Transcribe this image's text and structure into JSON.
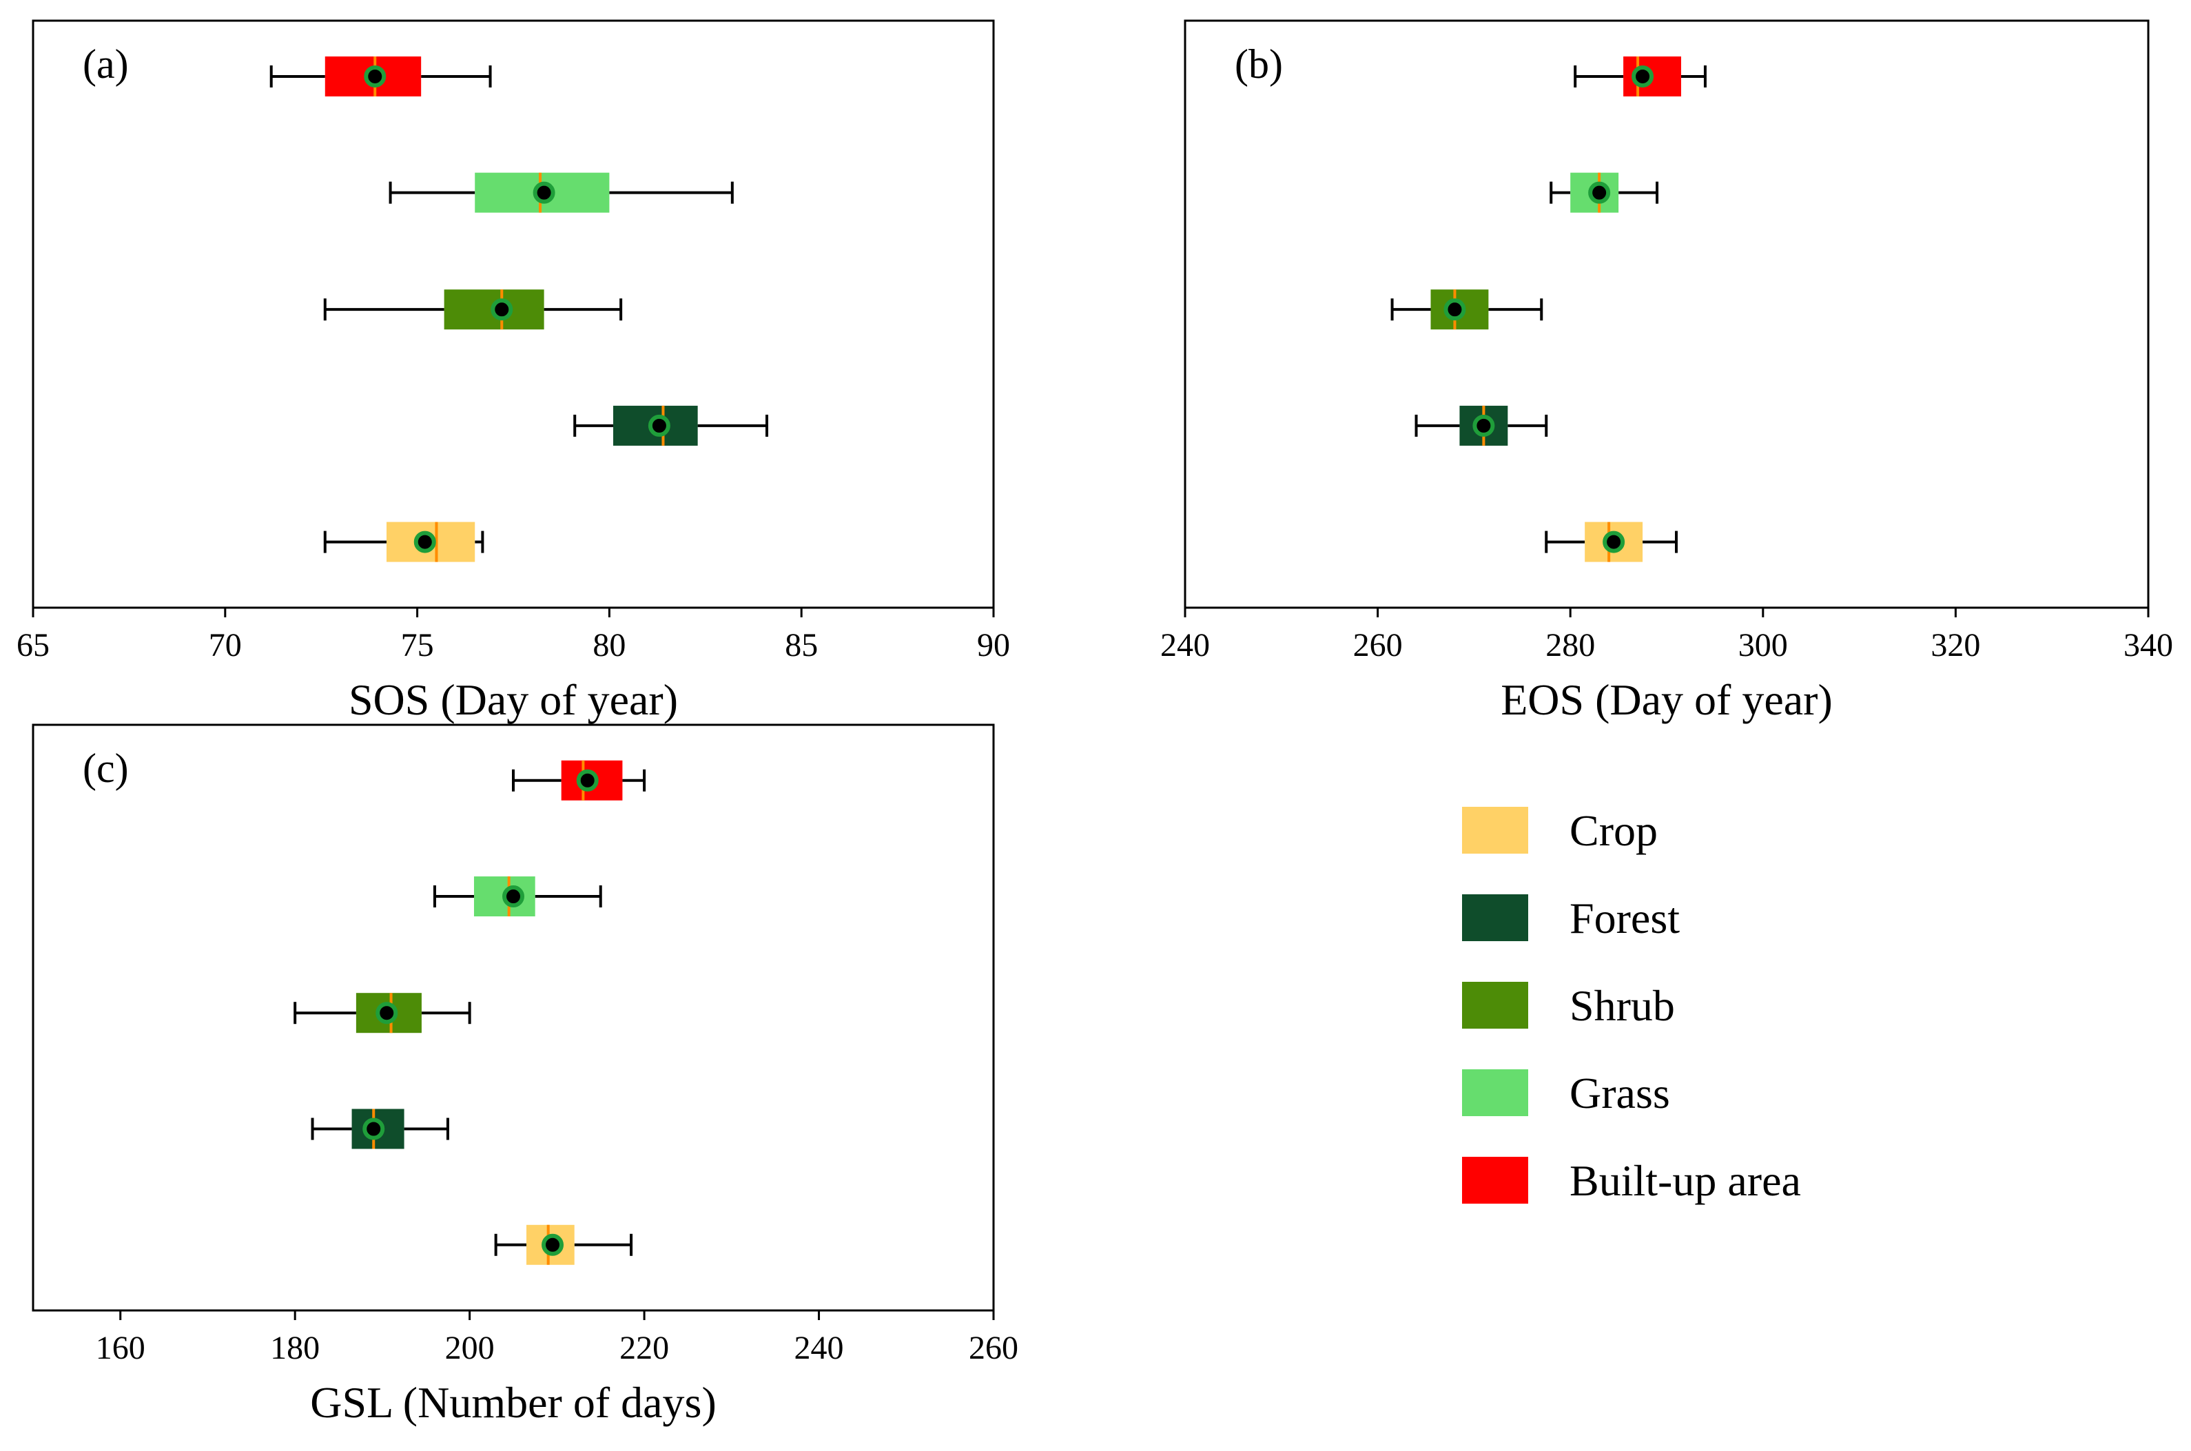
{
  "colors": {
    "Crop": "#ffd166",
    "Forest": "#0f4d2b",
    "Shrub": "#4d8c07",
    "Grass": "#66dd6e",
    "Built-up area": "#ff0000",
    "median": "#ff8c00",
    "mean_edge": "#1f9e3a"
  },
  "legend": {
    "entries": [
      "Crop",
      "Forest",
      "Shrub",
      "Grass",
      "Built-up area"
    ]
  },
  "chart_data": [
    {
      "type": "box",
      "panel_label": "(a)",
      "xlabel": "SOS (Day of year)",
      "xlim": [
        65,
        90
      ],
      "xticks": [
        65,
        70,
        75,
        80,
        85,
        90
      ],
      "categories_top_to_bottom": [
        "Built-up area",
        "Grass",
        "Shrub",
        "Forest",
        "Crop"
      ],
      "boxes": [
        {
          "name": "Built-up area",
          "whisker_low": 71.2,
          "q1": 72.6,
          "median": 73.9,
          "q3": 75.1,
          "whisker_high": 76.9,
          "mean": 73.9
        },
        {
          "name": "Grass",
          "whisker_low": 74.3,
          "q1": 76.5,
          "median": 78.2,
          "q3": 80.0,
          "whisker_high": 83.2,
          "mean": 78.3
        },
        {
          "name": "Shrub",
          "whisker_low": 72.6,
          "q1": 75.7,
          "median": 77.2,
          "q3": 78.3,
          "whisker_high": 80.3,
          "mean": 77.2
        },
        {
          "name": "Forest",
          "whisker_low": 79.1,
          "q1": 80.1,
          "median": 81.4,
          "q3": 82.3,
          "whisker_high": 84.1,
          "mean": 81.3
        },
        {
          "name": "Crop",
          "whisker_low": 72.6,
          "q1": 74.2,
          "median": 75.5,
          "q3": 76.5,
          "whisker_high": 76.7,
          "mean": 75.2
        }
      ]
    },
    {
      "type": "box",
      "panel_label": "(b)",
      "xlabel": "EOS (Day of year)",
      "xlim": [
        240,
        340
      ],
      "xticks": [
        240,
        260,
        280,
        300,
        320,
        340
      ],
      "categories_top_to_bottom": [
        "Built-up area",
        "Grass",
        "Shrub",
        "Forest",
        "Crop"
      ],
      "boxes": [
        {
          "name": "Built-up area",
          "whisker_low": 280.5,
          "q1": 285.5,
          "median": 287.0,
          "q3": 291.5,
          "whisker_high": 294.0,
          "mean": 287.5
        },
        {
          "name": "Grass",
          "whisker_low": 278.0,
          "q1": 280.0,
          "median": 283.0,
          "q3": 285.0,
          "whisker_high": 289.0,
          "mean": 283.0
        },
        {
          "name": "Shrub",
          "whisker_low": 261.5,
          "q1": 265.5,
          "median": 268.0,
          "q3": 271.5,
          "whisker_high": 277.0,
          "mean": 268.0
        },
        {
          "name": "Forest",
          "whisker_low": 264.0,
          "q1": 268.5,
          "median": 271.0,
          "q3": 273.5,
          "whisker_high": 277.5,
          "mean": 271.0
        },
        {
          "name": "Crop",
          "whisker_low": 277.5,
          "q1": 281.5,
          "median": 284.0,
          "q3": 287.5,
          "whisker_high": 291.0,
          "mean": 284.5
        }
      ]
    },
    {
      "type": "box",
      "panel_label": "(c)",
      "xlabel": "GSL (Number of days)",
      "xlim": [
        150,
        260
      ],
      "xticks": [
        160,
        180,
        200,
        220,
        240,
        260
      ],
      "categories_top_to_bottom": [
        "Built-up area",
        "Grass",
        "Shrub",
        "Forest",
        "Crop"
      ],
      "boxes": [
        {
          "name": "Built-up area",
          "whisker_low": 205.0,
          "q1": 210.5,
          "median": 213.0,
          "q3": 217.5,
          "whisker_high": 220.0,
          "mean": 213.5
        },
        {
          "name": "Grass",
          "whisker_low": 196.0,
          "q1": 200.5,
          "median": 204.5,
          "q3": 207.5,
          "whisker_high": 215.0,
          "mean": 205.0
        },
        {
          "name": "Shrub",
          "whisker_low": 180.0,
          "q1": 187.0,
          "median": 191.0,
          "q3": 194.5,
          "whisker_high": 200.0,
          "mean": 190.5
        },
        {
          "name": "Forest",
          "whisker_low": 182.0,
          "q1": 186.5,
          "median": 189.0,
          "q3": 192.5,
          "whisker_high": 197.5,
          "mean": 189.0
        },
        {
          "name": "Crop",
          "whisker_low": 203.0,
          "q1": 206.5,
          "median": 209.0,
          "q3": 212.0,
          "whisker_high": 218.5,
          "mean": 209.5
        }
      ]
    }
  ]
}
